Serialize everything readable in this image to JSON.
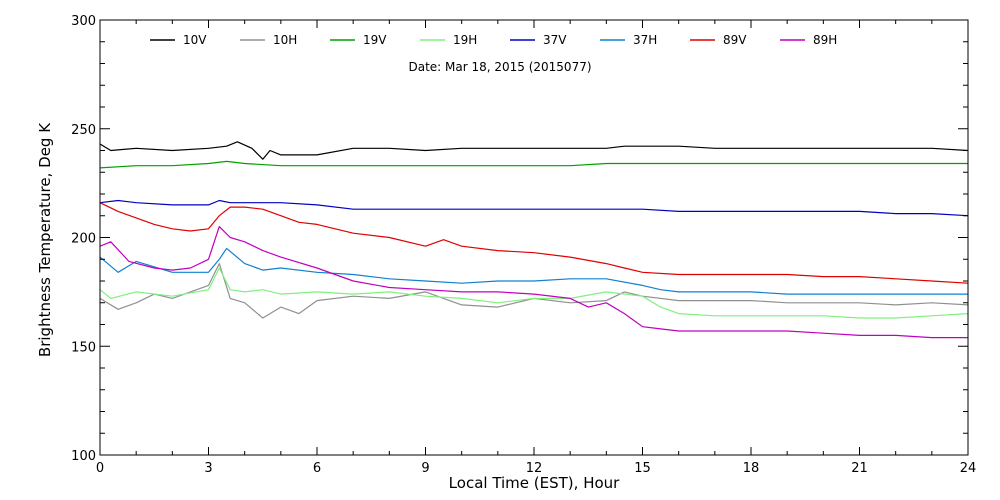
{
  "chart_data": {
    "type": "line",
    "title": "Date: Mar 18, 2015 (2015077)",
    "xlabel": "Local Time (EST), Hour",
    "ylabel": "Brightness Temperature, Deg K",
    "xlim": [
      0,
      24
    ],
    "ylim": [
      100,
      300
    ],
    "xticks": [
      "0",
      "3",
      "6",
      "9",
      "12",
      "15",
      "18",
      "21",
      "24"
    ],
    "xtick_values": [
      0,
      3,
      6,
      9,
      12,
      15,
      18,
      21,
      24
    ],
    "yticks": [
      "100",
      "150",
      "200",
      "250",
      "300"
    ],
    "ytick_values": [
      100,
      150,
      200,
      250,
      300
    ],
    "grid": false,
    "legend_position": "top",
    "series": [
      {
        "name": "10V",
        "color": "#000000",
        "x": [
          0,
          0.3,
          1,
          2,
          3,
          3.5,
          3.8,
          4.2,
          4.5,
          4.7,
          5,
          6,
          7,
          8,
          9,
          10,
          11,
          12,
          13,
          14,
          14.5,
          15,
          16,
          17,
          18,
          19,
          20,
          21,
          22,
          23,
          24
        ],
        "y": [
          243,
          240,
          241,
          240,
          241,
          242,
          244,
          241,
          236,
          240,
          238,
          238,
          241,
          241,
          240,
          241,
          241,
          241,
          241,
          241,
          242,
          242,
          242,
          241,
          241,
          241,
          241,
          241,
          241,
          241,
          240
        ]
      },
      {
        "name": "10H",
        "color": "#909090",
        "x": [
          0,
          0.5,
          1,
          1.5,
          2,
          2.5,
          3,
          3.3,
          3.6,
          4,
          4.5,
          5,
          5.5,
          6,
          7,
          8,
          9,
          10,
          11,
          12,
          13,
          14,
          14.5,
          15,
          16,
          17,
          18,
          19,
          20,
          21,
          22,
          23,
          24
        ],
        "y": [
          172,
          167,
          170,
          174,
          172,
          175,
          178,
          188,
          172,
          170,
          163,
          168,
          165,
          171,
          173,
          172,
          175,
          169,
          168,
          172,
          170,
          171,
          175,
          173,
          171,
          171,
          171,
          170,
          170,
          170,
          169,
          170,
          169
        ]
      },
      {
        "name": "19V",
        "color": "#00a000",
        "x": [
          0,
          1,
          2,
          3,
          3.5,
          4,
          5,
          6,
          7,
          8,
          9,
          10,
          11,
          12,
          13,
          14,
          15,
          16,
          17,
          18,
          19,
          20,
          21,
          22,
          23,
          24
        ],
        "y": [
          232,
          233,
          233,
          234,
          235,
          234,
          233,
          233,
          233,
          233,
          233,
          233,
          233,
          233,
          233,
          234,
          234,
          234,
          234,
          234,
          234,
          234,
          234,
          234,
          234,
          234
        ]
      },
      {
        "name": "19H",
        "color": "#80f080",
        "x": [
          0,
          0.3,
          1,
          2,
          3,
          3.3,
          3.6,
          4,
          4.5,
          5,
          6,
          7,
          8,
          9,
          10,
          11,
          12,
          13,
          14,
          15,
          15.5,
          16,
          17,
          18,
          19,
          20,
          21,
          22,
          23,
          24
        ],
        "y": [
          176,
          172,
          175,
          173,
          176,
          186,
          176,
          175,
          176,
          174,
          175,
          174,
          175,
          173,
          172,
          170,
          172,
          172,
          175,
          173,
          168,
          165,
          164,
          164,
          164,
          164,
          163,
          163,
          164,
          165
        ]
      },
      {
        "name": "37V",
        "color": "#0000c0",
        "x": [
          0,
          0.5,
          1,
          2,
          3,
          3.3,
          3.6,
          4,
          5,
          6,
          7,
          8,
          9,
          10,
          11,
          12,
          13,
          14,
          15,
          16,
          17,
          18,
          19,
          20,
          21,
          22,
          23,
          24
        ],
        "y": [
          216,
          217,
          216,
          215,
          215,
          217,
          216,
          216,
          216,
          215,
          213,
          213,
          213,
          213,
          213,
          213,
          213,
          213,
          213,
          212,
          212,
          212,
          212,
          212,
          212,
          211,
          211,
          210
        ]
      },
      {
        "name": "37H",
        "color": "#1080d0",
        "x": [
          0,
          0.5,
          1,
          2,
          3,
          3.3,
          3.5,
          4,
          4.5,
          5,
          6,
          7,
          8,
          9,
          10,
          11,
          12,
          13,
          14,
          15,
          15.5,
          16,
          17,
          18,
          19,
          20,
          21,
          22,
          23,
          24
        ],
        "y": [
          191,
          184,
          189,
          184,
          184,
          190,
          195,
          188,
          185,
          186,
          184,
          183,
          181,
          180,
          179,
          180,
          180,
          181,
          181,
          178,
          176,
          175,
          175,
          175,
          174,
          174,
          174,
          174,
          174,
          174
        ]
      },
      {
        "name": "89V",
        "color": "#e00000",
        "x": [
          0,
          0.5,
          1,
          1.5,
          2,
          2.5,
          3,
          3.3,
          3.6,
          4,
          4.5,
          5,
          5.5,
          6,
          7,
          8,
          9,
          9.5,
          10,
          11,
          12,
          13,
          14,
          14.5,
          15,
          16,
          17,
          18,
          19,
          20,
          21,
          22,
          23,
          24
        ],
        "y": [
          216,
          212,
          209,
          206,
          204,
          203,
          204,
          210,
          214,
          214,
          213,
          210,
          207,
          206,
          202,
          200,
          196,
          199,
          196,
          194,
          193,
          191,
          188,
          186,
          184,
          183,
          183,
          183,
          183,
          182,
          182,
          181,
          180,
          179
        ]
      },
      {
        "name": "89H",
        "color": "#c000c0",
        "x": [
          0,
          0.3,
          0.8,
          1.5,
          2,
          2.5,
          3,
          3.3,
          3.6,
          4,
          4.5,
          5,
          6,
          7,
          8,
          9,
          10,
          11,
          12,
          13,
          13.5,
          14,
          14.5,
          15,
          15.5,
          16,
          17,
          18,
          19,
          20,
          21,
          22,
          23,
          24
        ],
        "y": [
          196,
          198,
          189,
          186,
          185,
          186,
          190,
          205,
          200,
          198,
          194,
          191,
          186,
          180,
          177,
          176,
          175,
          175,
          174,
          172,
          168,
          170,
          165,
          159,
          158,
          157,
          157,
          157,
          157,
          156,
          155,
          155,
          154,
          154
        ]
      }
    ]
  }
}
